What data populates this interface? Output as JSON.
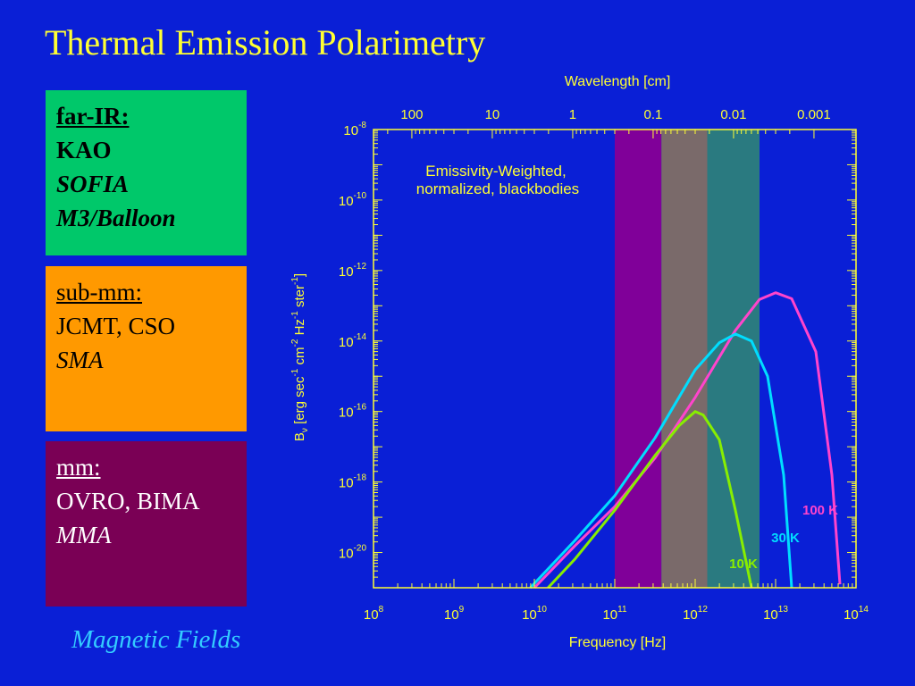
{
  "slide": {
    "title": "Thermal Emission Polarimetry",
    "footer": "Magnetic Fields"
  },
  "boxes": [
    {
      "id": "farir",
      "heading": "far-IR:",
      "lines": [
        {
          "text": "KAO",
          "italic": false
        },
        {
          "text": "SOFIA",
          "italic": true
        },
        {
          "text": "M3/Balloon",
          "italic": true
        }
      ],
      "color": "#00c86a"
    },
    {
      "id": "submm",
      "heading": "sub-mm:",
      "lines": [
        {
          "text": "JCMT, CSO",
          "italic": false
        },
        {
          "text": "SMA",
          "italic": true
        }
      ],
      "color": "#ff9900"
    },
    {
      "id": "mm",
      "heading": "mm:",
      "lines": [
        {
          "text": "OVRO, BIMA",
          "italic": false
        },
        {
          "text": "MMA",
          "italic": true
        }
      ],
      "color": "#7a0055"
    }
  ],
  "chart_data": {
    "type": "line",
    "xlabel": "Frequency [Hz]",
    "top_axis_label": "Wavelength [cm]",
    "ylabel_parts": [
      "B",
      "ν",
      " [erg sec",
      "-1",
      " cm",
      "-2",
      " Hz",
      "-1",
      " ster",
      "-1",
      "]"
    ],
    "annotation": [
      "Emissivity-Weighted,",
      "normalized, blackbodies"
    ],
    "x_log_range": [
      8,
      14
    ],
    "y_log_range": [
      -21,
      -8
    ],
    "x_ticks": [
      {
        "base": "10",
        "exp": "8",
        "v": 8
      },
      {
        "base": "10",
        "exp": "9",
        "v": 9
      },
      {
        "base": "10",
        "exp": "10",
        "v": 10
      },
      {
        "base": "10",
        "exp": "11",
        "v": 11
      },
      {
        "base": "10",
        "exp": "12",
        "v": 12
      },
      {
        "base": "10",
        "exp": "13",
        "v": 13
      },
      {
        "base": "10",
        "exp": "14",
        "v": 14
      }
    ],
    "y_ticks": [
      {
        "base": "10",
        "exp": "-8",
        "v": -8
      },
      {
        "base": "10",
        "exp": "-10",
        "v": -10
      },
      {
        "base": "10",
        "exp": "-12",
        "v": -12
      },
      {
        "base": "10",
        "exp": "-14",
        "v": -14
      },
      {
        "base": "10",
        "exp": "-16",
        "v": -16
      },
      {
        "base": "10",
        "exp": "-18",
        "v": -18
      },
      {
        "base": "10",
        "exp": "-20",
        "v": -20
      }
    ],
    "wavelength_ticks": [
      {
        "label": "100",
        "cm": 100
      },
      {
        "label": "10",
        "cm": 10
      },
      {
        "label": "1",
        "cm": 1
      },
      {
        "label": "0.1",
        "cm": 0.1
      },
      {
        "label": "0.01",
        "cm": 0.01
      },
      {
        "label": "0.001",
        "cm": 0.001
      }
    ],
    "bands": [
      {
        "name": "mm",
        "x_from": 11.0,
        "x_to": 11.58,
        "color": "#800099"
      },
      {
        "name": "sub-mm",
        "x_from": 11.58,
        "x_to": 12.15,
        "color": "#7a6a6a"
      },
      {
        "name": "far-IR",
        "x_from": 12.15,
        "x_to": 12.8,
        "color": "#2a7a80"
      }
    ],
    "series": [
      {
        "name": "100 K",
        "color": "#ff44cc",
        "x": [
          10.0,
          10.5,
          11.0,
          11.5,
          12.0,
          12.5,
          12.8,
          13.0,
          13.2,
          13.5,
          13.7,
          13.8
        ],
        "y": [
          -21.0,
          -19.82,
          -18.7,
          -17.32,
          -15.6,
          -13.7,
          -12.82,
          -12.63,
          -12.8,
          -14.3,
          -17.8,
          -20.9
        ]
      },
      {
        "name": "30 K",
        "color": "#00ddff",
        "x": [
          9.95,
          10.5,
          11.0,
          11.5,
          12.0,
          12.3,
          12.5,
          12.7,
          12.9,
          13.1,
          13.2
        ],
        "y": [
          -21.0,
          -19.67,
          -18.39,
          -16.75,
          -14.82,
          -14.05,
          -13.8,
          -14.0,
          -15.0,
          -17.8,
          -21.0
        ]
      },
      {
        "name": "10 K",
        "color": "#88ee00",
        "x": [
          10.17,
          10.5,
          11.0,
          11.5,
          11.8,
          12.0,
          12.1,
          12.3,
          12.5,
          12.7
        ],
        "y": [
          -21.0,
          -20.2,
          -18.8,
          -17.25,
          -16.4,
          -16.0,
          -16.1,
          -16.8,
          -18.8,
          -21.0
        ]
      }
    ],
    "grid": false
  }
}
